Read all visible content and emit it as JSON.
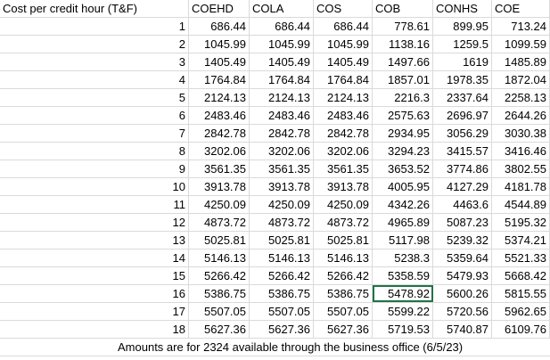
{
  "header": {
    "title": "Cost per credit hour (T&F)",
    "columns": [
      "COEHD",
      "COLA",
      "COS",
      "COB",
      "CONHS",
      "COE"
    ]
  },
  "rows": [
    {
      "hours": "1",
      "values": [
        "686.44",
        "686.44",
        "686.44",
        "778.61",
        "899.95",
        "713.24"
      ]
    },
    {
      "hours": "2",
      "values": [
        "1045.99",
        "1045.99",
        "1045.99",
        "1138.16",
        "1259.5",
        "1099.59"
      ]
    },
    {
      "hours": "3",
      "values": [
        "1405.49",
        "1405.49",
        "1405.49",
        "1497.66",
        "1619",
        "1485.89"
      ]
    },
    {
      "hours": "4",
      "values": [
        "1764.84",
        "1764.84",
        "1764.84",
        "1857.01",
        "1978.35",
        "1872.04"
      ]
    },
    {
      "hours": "5",
      "values": [
        "2124.13",
        "2124.13",
        "2124.13",
        "2216.3",
        "2337.64",
        "2258.13"
      ]
    },
    {
      "hours": "6",
      "values": [
        "2483.46",
        "2483.46",
        "2483.46",
        "2575.63",
        "2696.97",
        "2644.26"
      ]
    },
    {
      "hours": "7",
      "values": [
        "2842.78",
        "2842.78",
        "2842.78",
        "2934.95",
        "3056.29",
        "3030.38"
      ]
    },
    {
      "hours": "8",
      "values": [
        "3202.06",
        "3202.06",
        "3202.06",
        "3294.23",
        "3415.57",
        "3416.46"
      ]
    },
    {
      "hours": "9",
      "values": [
        "3561.35",
        "3561.35",
        "3561.35",
        "3653.52",
        "3774.86",
        "3802.55"
      ]
    },
    {
      "hours": "10",
      "values": [
        "3913.78",
        "3913.78",
        "3913.78",
        "4005.95",
        "4127.29",
        "4181.78"
      ]
    },
    {
      "hours": "11",
      "values": [
        "4250.09",
        "4250.09",
        "4250.09",
        "4342.26",
        "4463.6",
        "4544.89"
      ]
    },
    {
      "hours": "12",
      "values": [
        "4873.72",
        "4873.72",
        "4873.72",
        "4965.89",
        "5087.23",
        "5195.32"
      ]
    },
    {
      "hours": "13",
      "values": [
        "5025.81",
        "5025.81",
        "5025.81",
        "5117.98",
        "5239.32",
        "5374.21"
      ]
    },
    {
      "hours": "14",
      "values": [
        "5146.13",
        "5146.13",
        "5146.13",
        "5238.3",
        "5359.64",
        "5521.33"
      ]
    },
    {
      "hours": "15",
      "values": [
        "5266.42",
        "5266.42",
        "5266.42",
        "5358.59",
        "5479.93",
        "5668.42"
      ]
    },
    {
      "hours": "16",
      "values": [
        "5386.75",
        "5386.75",
        "5386.75",
        "5478.92",
        "5600.26",
        "5815.55"
      ]
    },
    {
      "hours": "17",
      "values": [
        "5507.05",
        "5507.05",
        "5507.05",
        "5599.22",
        "5720.56",
        "5962.65"
      ]
    },
    {
      "hours": "18",
      "values": [
        "5627.36",
        "5627.36",
        "5627.36",
        "5719.53",
        "5740.87",
        "6109.76"
      ]
    }
  ],
  "selected_cell": "5478.92",
  "footer": {
    "note": "Amounts are for 2324 available through the business office (6/5/23)"
  },
  "colors": {
    "gridline": "#dadada",
    "selection": "#217346"
  }
}
